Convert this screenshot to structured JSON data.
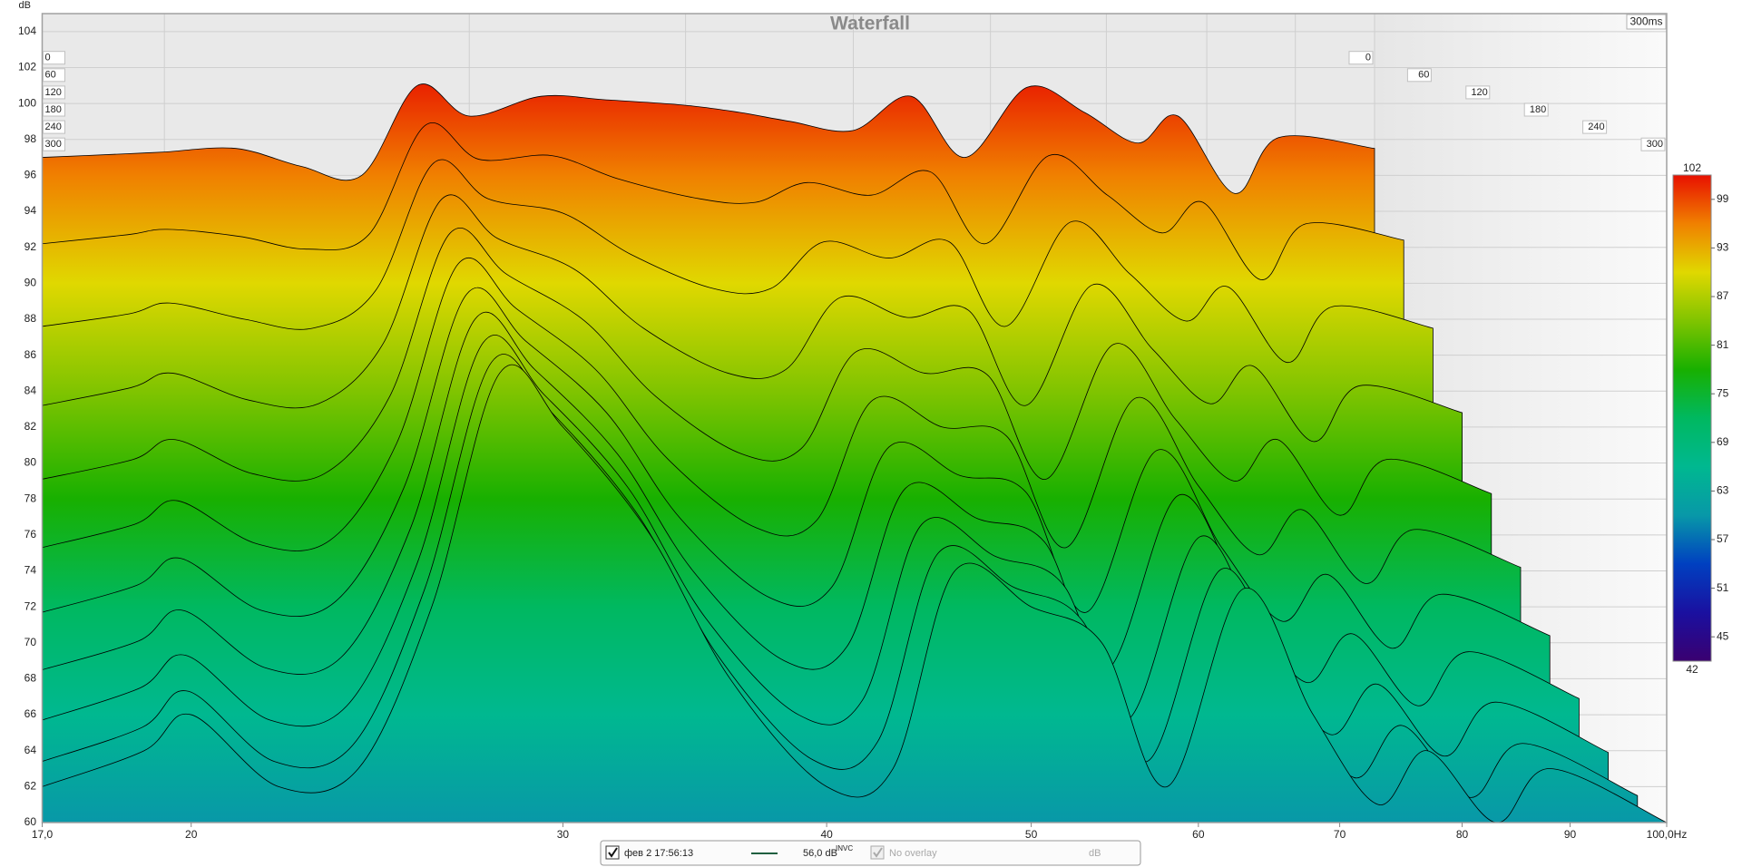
{
  "chart_data": {
    "type": "waterfall",
    "title": "Waterfall",
    "y_label": "dB",
    "window_label": "300ms",
    "x": [
      17,
      19,
      20,
      22,
      24,
      26,
      28,
      30,
      33,
      36,
      40,
      43,
      46,
      50,
      54,
      58,
      63,
      68,
      73,
      77,
      83,
      88,
      100
    ],
    "xlim": [
      17,
      100
    ],
    "log_x": true,
    "xticks": [
      {
        "value": 17,
        "label": "17,0"
      },
      20,
      30,
      40,
      50,
      60,
      70,
      80,
      90,
      {
        "value": 100,
        "label": "100,0Hz"
      }
    ],
    "ylim": [
      60,
      105
    ],
    "yticks": [
      60,
      62,
      64,
      66,
      68,
      70,
      72,
      74,
      76,
      78,
      80,
      82,
      84,
      86,
      88,
      90,
      92,
      94,
      96,
      98,
      100,
      102,
      104
    ],
    "tlim": [
      0,
      300
    ],
    "tticks": [
      0,
      60,
      120,
      180,
      240,
      300
    ],
    "zlim": [
      42,
      102
    ],
    "zticks": [
      45,
      51,
      57,
      63,
      69,
      75,
      81,
      87,
      93,
      99
    ],
    "colorscale": [
      "#3a0070",
      "#1a10a0",
      "#0040c0",
      "#0898a8",
      "#00b890",
      "#00b860",
      "#18b000",
      "#80c400",
      "#e0d800",
      "#f08000",
      "#e81000"
    ],
    "line_color": "#000000",
    "grid": true,
    "slices": [
      {
        "t": 0,
        "values": [
          97,
          97.2,
          97.3,
          97.5,
          96.5,
          96,
          101,
          99.3,
          100.4,
          100.2,
          99.9,
          99.5,
          99,
          98.5,
          100.4,
          97,
          100.9,
          99.5,
          97.8,
          99.3,
          95,
          98.1,
          97.5
        ]
      },
      {
        "t": 30,
        "values": [
          92.2,
          92.7,
          93,
          92.6,
          91.9,
          92.7,
          98.8,
          96.9,
          97.1,
          95.8,
          94.7,
          94.5,
          95.6,
          94.9,
          96.2,
          92.2,
          97.1,
          94.9,
          92.8,
          94.5,
          90.2,
          93.3,
          92.4
        ]
      },
      {
        "t": 60,
        "values": [
          87.6,
          88.3,
          88.9,
          88,
          87.5,
          89.6,
          96.7,
          94.7,
          93.9,
          91.6,
          89.7,
          89.7,
          92.3,
          91.4,
          92.3,
          87.6,
          93.4,
          90.5,
          87.9,
          89.8,
          85.6,
          88.7,
          87.5
        ]
      },
      {
        "t": 90,
        "values": [
          83.2,
          84.2,
          85,
          83.5,
          83.3,
          86.6,
          94.7,
          92.5,
          90.8,
          87.5,
          85,
          85.2,
          89.2,
          88.1,
          88.5,
          83.2,
          89.9,
          86.3,
          83.3,
          85.4,
          81.2,
          84.3,
          82.8
        ]
      },
      {
        "t": 120,
        "values": [
          79.1,
          80.2,
          81.3,
          79.4,
          79.4,
          83.7,
          92.8,
          90.5,
          87.9,
          83.7,
          80.5,
          80.8,
          86.2,
          85,
          84.9,
          79.1,
          86.6,
          82.4,
          79,
          81.3,
          77.1,
          80.2,
          78.3
        ]
      },
      {
        "t": 150,
        "values": [
          75.3,
          76.6,
          77.9,
          75.5,
          75.7,
          81.1,
          91.1,
          88.6,
          85.2,
          80.2,
          76.4,
          76.8,
          83.5,
          82,
          81.5,
          75.3,
          83.6,
          78.7,
          74.9,
          77.4,
          73.3,
          76.3,
          74.2
        ]
      },
      {
        "t": 180,
        "values": [
          71.7,
          73.2,
          74.7,
          71.8,
          72.3,
          78.6,
          89.4,
          86.8,
          82.8,
          76.9,
          72.5,
          73.1,
          80.9,
          79.3,
          78.4,
          71.7,
          80.7,
          75.3,
          71.2,
          73.8,
          69.7,
          72.7,
          70.4
        ]
      },
      {
        "t": 210,
        "values": [
          68.5,
          70.1,
          71.8,
          68.6,
          69.2,
          76.4,
          88,
          85.2,
          80.5,
          74,
          69,
          69.8,
          78.6,
          76.9,
          75.6,
          68.5,
          78.2,
          72.2,
          67.8,
          70.5,
          66.5,
          69.5,
          66.9
        ]
      },
      {
        "t": 240,
        "values": [
          65.7,
          67.5,
          69.3,
          65.7,
          66.5,
          74.5,
          86.7,
          83.8,
          78.6,
          71.4,
          66,
          66.8,
          76.6,
          74.8,
          73.2,
          65.7,
          75.9,
          69.5,
          64.9,
          67.7,
          63.7,
          66.7,
          63.9
        ]
      },
      {
        "t": 270,
        "values": [
          63.4,
          65.3,
          67.3,
          63.4,
          64.3,
          73,
          85.6,
          82.7,
          77,
          69.3,
          63.5,
          64.5,
          75,
          73.1,
          71.2,
          63.4,
          74.1,
          67.3,
          62.5,
          65.4,
          61.4,
          64.4,
          61.5
        ]
      },
      {
        "t": 300,
        "values": [
          62,
          64,
          66,
          62,
          63,
          72,
          85,
          82,
          76,
          68,
          62,
          63,
          74,
          72,
          70,
          62,
          73,
          66,
          61,
          64,
          60,
          63,
          60
        ]
      }
    ],
    "legend": {
      "name": "фев 2 17:56:13",
      "color": "#1f5f3f",
      "level": "56,0 dB",
      "flag": "INVC",
      "overlay": "No overlay",
      "unit": "dB"
    }
  }
}
